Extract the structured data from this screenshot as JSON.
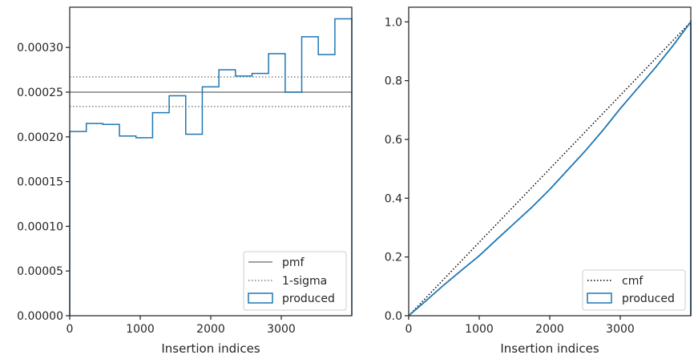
{
  "chart_data": [
    {
      "type": "step-histogram",
      "xlabel": "Insertion indices",
      "ylabel": "",
      "xlim": [
        0,
        4000
      ],
      "ylim": [
        0,
        0.000345
      ],
      "xticks": [
        0,
        1000,
        2000,
        3000
      ],
      "xtick_labels": [
        "0",
        "1000",
        "2000",
        "3000"
      ],
      "yticks": [
        0,
        5e-05,
        0.0001,
        0.00015,
        0.0002,
        0.00025,
        0.0003
      ],
      "ytick_labels": [
        "0.00000",
        "0.00005",
        "0.00010",
        "0.00015",
        "0.00020",
        "0.00025",
        "0.00030"
      ],
      "bin_edges": [
        0,
        235,
        470,
        705,
        940,
        1175,
        1410,
        1645,
        1880,
        2115,
        2350,
        2585,
        2820,
        3055,
        3290,
        3525,
        3760,
        4000
      ],
      "produced_values": [
        0.000206,
        0.000215,
        0.000214,
        0.000201,
        0.000199,
        0.000227,
        0.000246,
        0.000203,
        0.000256,
        0.000275,
        0.000268,
        0.000271,
        0.000293,
        0.00025,
        0.000312,
        0.000292,
        0.000332
      ],
      "pmf": 0.00025,
      "sigma_upper": 0.000267,
      "sigma_lower": 0.000234,
      "legend": {
        "placement": "lower-right",
        "entries": [
          {
            "label": "pmf",
            "style": "solid-line",
            "color": "#808080"
          },
          {
            "label": "1-sigma",
            "style": "dotted-line",
            "color": "#808080"
          },
          {
            "label": "produced",
            "style": "box",
            "color": "#1f77b4"
          }
        ]
      }
    },
    {
      "type": "line",
      "xlabel": "Insertion indices",
      "ylabel": "",
      "xlim": [
        0,
        4000
      ],
      "ylim": [
        0,
        1.05
      ],
      "xticks": [
        0,
        1000,
        2000,
        3000
      ],
      "xtick_labels": [
        "0",
        "1000",
        "2000",
        "3000"
      ],
      "yticks": [
        0,
        0.2,
        0.4,
        0.6,
        0.8,
        1.0
      ],
      "ytick_labels": [
        "0.0",
        "0.2",
        "0.4",
        "0.6",
        "0.8",
        "1.0"
      ],
      "produced_x": [
        0,
        250,
        500,
        750,
        1000,
        1250,
        1500,
        1750,
        2000,
        2250,
        2500,
        2750,
        3000,
        3250,
        3500,
        3750,
        4000
      ],
      "produced_y": [
        0,
        0.052,
        0.105,
        0.155,
        0.204,
        0.26,
        0.315,
        0.37,
        0.43,
        0.495,
        0.56,
        0.63,
        0.705,
        0.775,
        0.845,
        0.92,
        1.0
      ],
      "cmf_x": [
        0,
        4000
      ],
      "cmf_y": [
        0,
        1.0
      ],
      "legend": {
        "placement": "lower-right",
        "entries": [
          {
            "label": "cmf",
            "style": "dotted-line",
            "color": "#000000"
          },
          {
            "label": "produced",
            "style": "box",
            "color": "#1f77b4"
          }
        ]
      }
    }
  ]
}
